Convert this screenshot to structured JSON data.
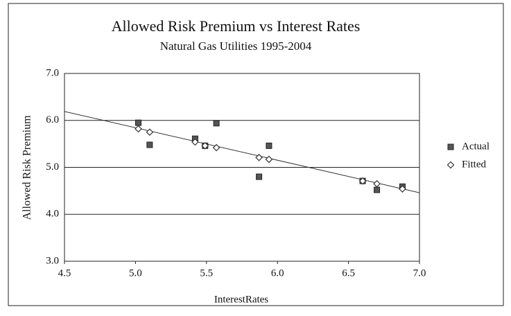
{
  "chart_data": {
    "type": "scatter",
    "title": "Allowed Risk Premium vs Interest Rates",
    "subtitle": "Natural Gas Utilities 1995-2004",
    "x_label": "InterestRates",
    "y_label": "Allowed Risk Premium",
    "xlim": [
      4.5,
      7.0
    ],
    "xticks": [
      {
        "value": 4.5,
        "label": "4.5"
      },
      {
        "value": 5,
        "label": "5.0"
      },
      {
        "value": 5.5,
        "label": "5.5"
      },
      {
        "value": 6,
        "label": "6.0"
      },
      {
        "value": 6.5,
        "label": "6.5"
      },
      {
        "value": 7,
        "label": "7.0"
      }
    ],
    "ylim": [
      3.0,
      7.0
    ],
    "yticks": [
      {
        "value": 3,
        "label": "3.0"
      },
      {
        "value": 4,
        "label": "4.0"
      },
      {
        "value": 5,
        "label": "5.0"
      },
      {
        "value": 6,
        "label": "6.0"
      },
      {
        "value": 7,
        "label": "7.0"
      }
    ],
    "grid": true,
    "legend": "right",
    "series": [
      {
        "name": "Actual",
        "color": "#555555",
        "marker": "square",
        "x": [
          5.02,
          5.1,
          5.42,
          5.49,
          5.57,
          5.87,
          5.94,
          6.6,
          6.7,
          6.88
        ],
        "values": [
          5.95,
          5.48,
          5.61,
          5.46,
          5.94,
          4.8,
          5.46,
          4.71,
          4.52,
          4.59
        ]
      },
      {
        "name": "Fitted",
        "color": "#333333",
        "marker": "diamond",
        "x": [
          5.02,
          5.1,
          5.42,
          5.49,
          5.57,
          5.87,
          5.94,
          6.6,
          6.7,
          6.88
        ],
        "values": [
          5.82,
          5.75,
          5.54,
          5.46,
          5.42,
          5.21,
          5.17,
          4.71,
          4.65,
          4.54
        ]
      }
    ],
    "trendline": {
      "x": [
        4.5,
        7.0
      ],
      "values": [
        6.19,
        4.46
      ]
    }
  }
}
